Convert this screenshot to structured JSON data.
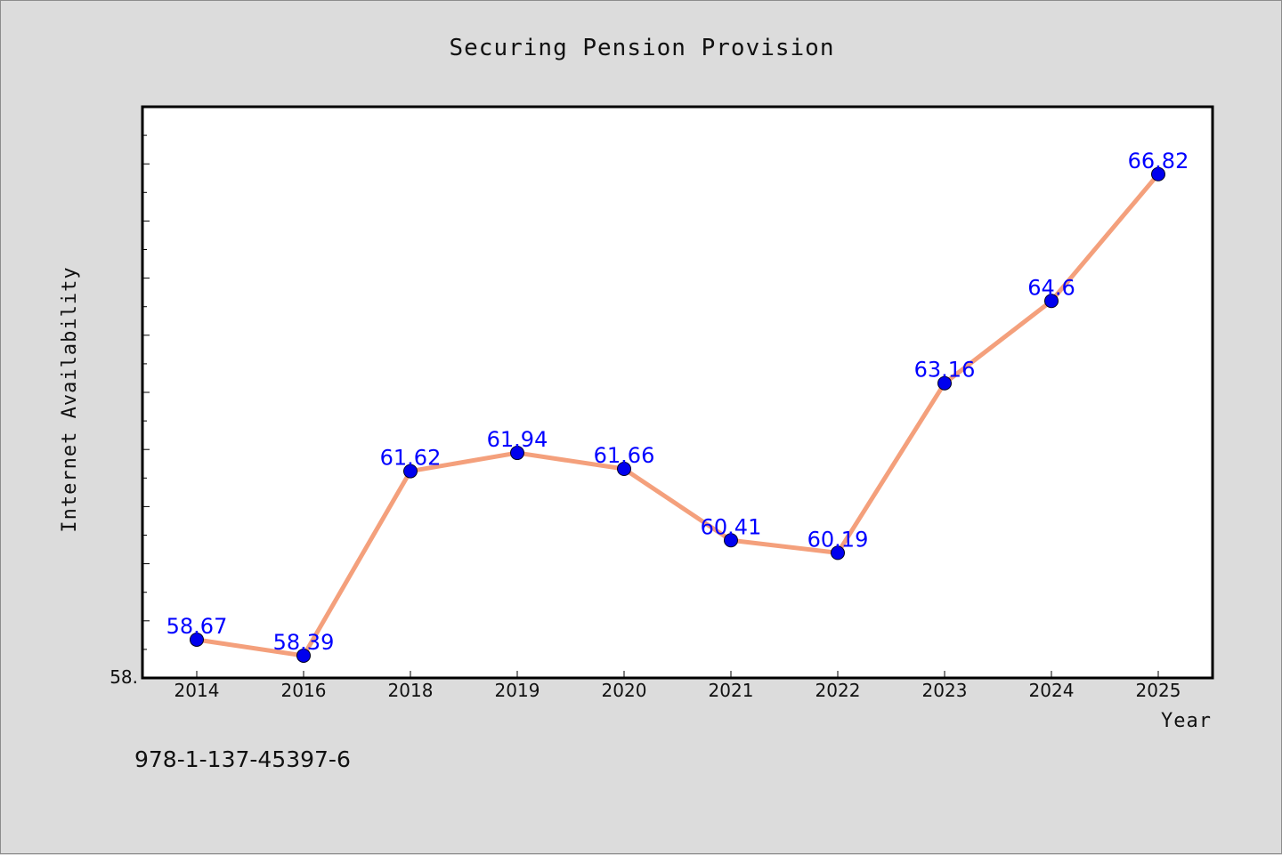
{
  "chart_data": {
    "type": "line",
    "title": "Securing Pension Provision",
    "xlabel": "Year",
    "ylabel": "Internet Availability",
    "categories": [
      "2014",
      "2016",
      "2018",
      "2019",
      "2020",
      "2021",
      "2022",
      "2023",
      "2024",
      "2025"
    ],
    "series": [
      {
        "values": [
          58.67,
          58.39,
          61.62,
          61.94,
          61.66,
          60.41,
          60.19,
          63.16,
          64.6,
          66.82
        ],
        "labels": [
          "58.67",
          "58.39",
          "61.62",
          "61.94",
          "61.66",
          "60.41",
          "60.19",
          "63.16",
          "64.6",
          "66.82"
        ],
        "line_color": "#f4a07c",
        "marker_color": "#0000ee"
      }
    ],
    "ylim": [
      58.0,
      68.0
    ],
    "y_tick_label": "58.",
    "grid": false,
    "legend": "none"
  },
  "footnote": "978-1-137-45397-6"
}
